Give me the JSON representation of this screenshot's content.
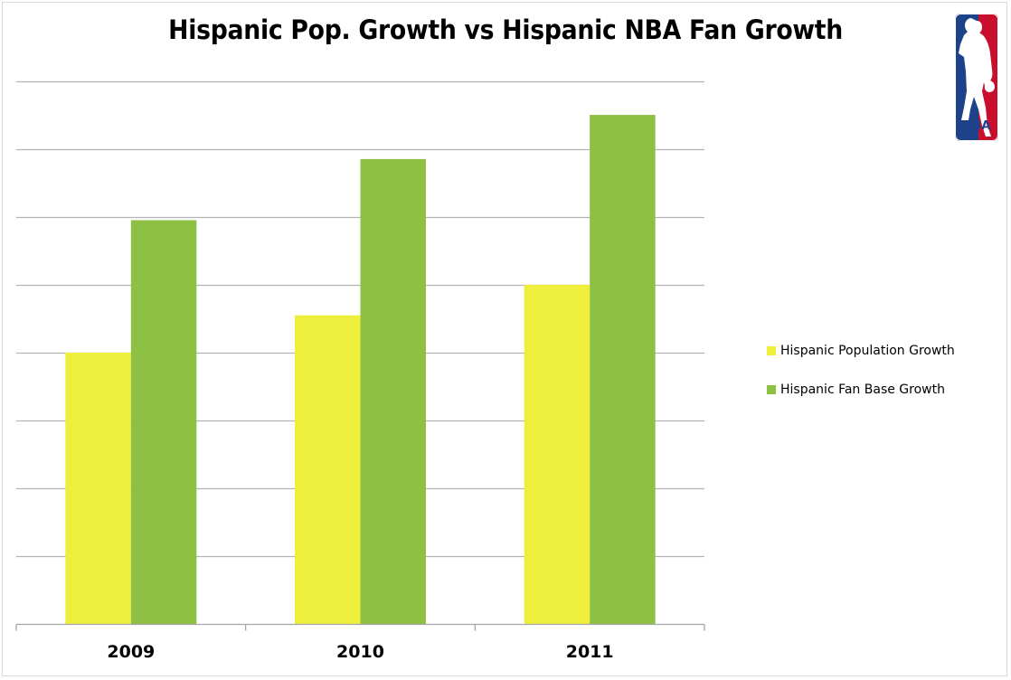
{
  "chart_data": {
    "type": "bar",
    "title": "Hispanic Pop. Growth vs Hispanic NBA Fan Growth",
    "xlabel": "",
    "ylabel": "",
    "categories": [
      "2009",
      "2010",
      "2011"
    ],
    "series": [
      {
        "name": "Hispanic Population Growth",
        "color": "#EEEE3C",
        "values": [
          4.0,
          4.55,
          5.0
        ]
      },
      {
        "name": "Hispanic Fan Base Growth",
        "color": "#8DC043",
        "values": [
          5.95,
          6.85,
          7.5
        ]
      }
    ],
    "ylim": [
      0,
      8
    ],
    "y_gridline_step": 1,
    "y_tick_labels_visible": false,
    "value_units": "relative (no y-axis labels shown; units = gridline intervals)",
    "grid": true,
    "legend_position": "right"
  },
  "logo": {
    "name": "NBA",
    "text": "NBA",
    "colors": {
      "blue": "#1D428A",
      "red": "#C8102E"
    }
  }
}
